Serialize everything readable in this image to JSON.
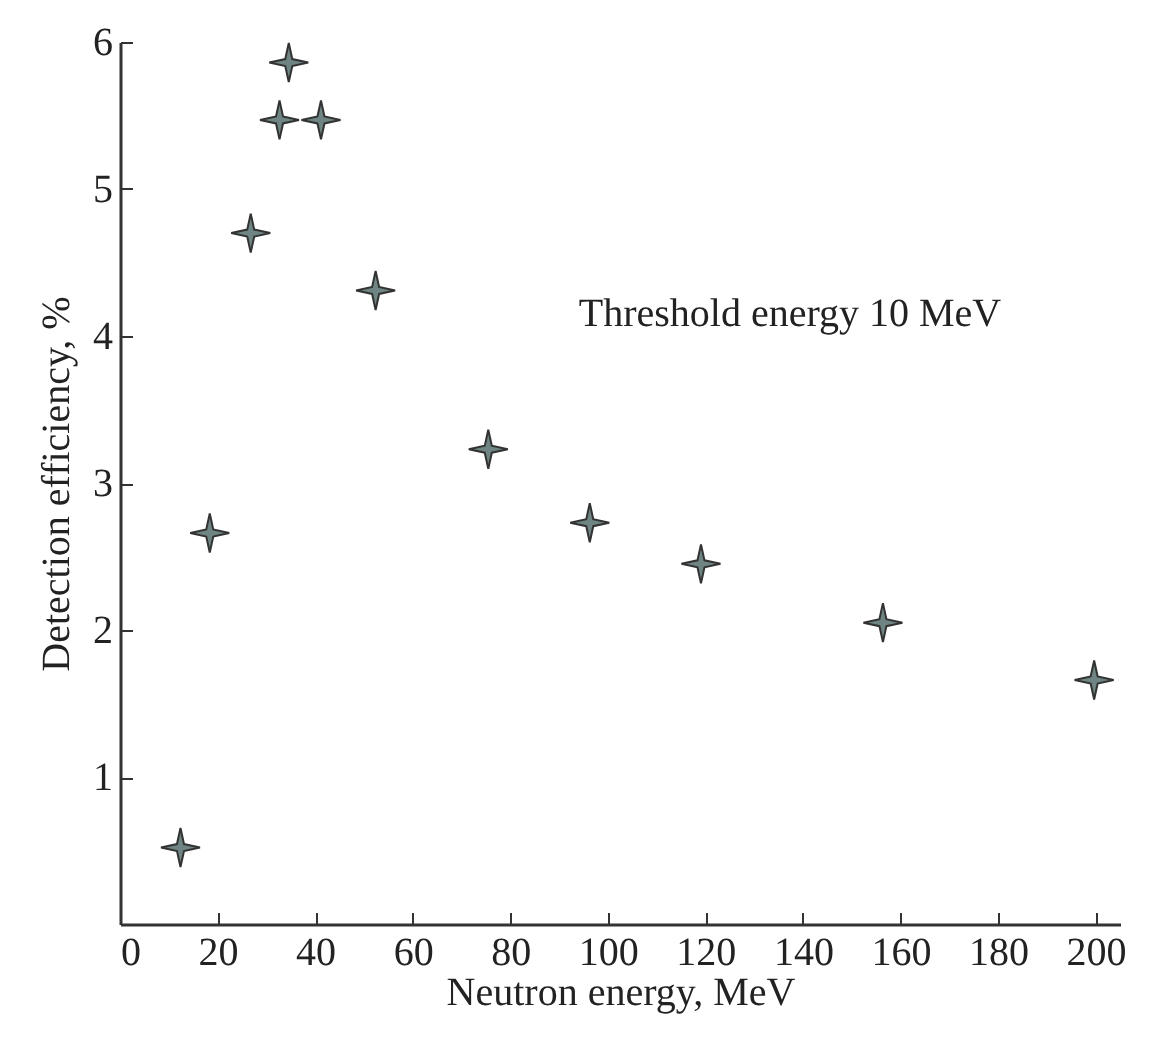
{
  "chart_data": {
    "type": "scatter",
    "xlabel": "Neutron energy, MeV",
    "ylabel": "Detection efficiency, %",
    "annotations": [
      "Threshold energy 10 MeV"
    ],
    "x": [
      12.4,
      18.4,
      26.8,
      32.7,
      34.6,
      41.2,
      52.4,
      75.5,
      96.3,
      119.1,
      156.4,
      199.7
    ],
    "series": [
      {
        "color": "#6f8583",
        "values": [
          0.52,
          2.66,
          4.7,
          5.47,
          5.86,
          5.47,
          4.31,
          3.23,
          2.73,
          2.45,
          2.05,
          1.66
        ]
      }
    ],
    "xlim": [
      0,
      205
    ],
    "ylim": [
      0,
      6
    ],
    "xticks": [
      0,
      20,
      40,
      60,
      80,
      100,
      120,
      140,
      160,
      180,
      200
    ],
    "yticks": [
      1,
      2,
      3,
      4,
      5,
      6
    ],
    "grid": false,
    "marker": "star"
  }
}
